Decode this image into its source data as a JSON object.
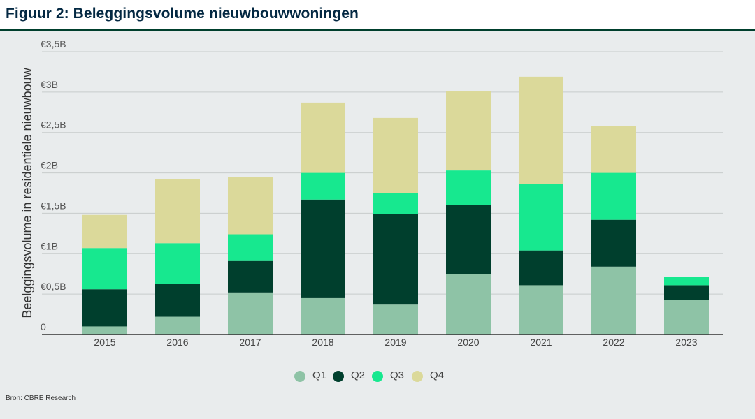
{
  "title": "Figuur 2: Beleggingsvolume nieuwbouwwoningen",
  "source": "Bron: CBRE Research",
  "colors": {
    "Q1": "#8ec3a6",
    "Q2": "#003f2d",
    "Q3": "#17e88f",
    "Q4": "#dbd99a",
    "grid": "#c7cccc",
    "axis": "#333333"
  },
  "chart_data": {
    "type": "bar",
    "stacked": true,
    "ylabel": "Beelggingsvolume in residentiele nieuwbouw",
    "ylim": [
      0,
      3.5
    ],
    "yticks": [
      0,
      0.5,
      1,
      1.5,
      2,
      2.5,
      3,
      3.5
    ],
    "ytick_labels": [
      "0",
      "€0,5B",
      "€1B",
      "€1,5B",
      "€2B",
      "€2,5B",
      "€3B",
      "€3,5B"
    ],
    "categories": [
      "2015",
      "2016",
      "2017",
      "2018",
      "2019",
      "2020",
      "2021",
      "2022",
      "2023"
    ],
    "series": [
      {
        "name": "Q1",
        "values": [
          0.1,
          0.22,
          0.52,
          0.45,
          0.37,
          0.75,
          0.61,
          0.84,
          0.43
        ]
      },
      {
        "name": "Q2",
        "values": [
          0.46,
          0.41,
          0.39,
          1.22,
          1.12,
          0.85,
          0.43,
          0.58,
          0.18
        ]
      },
      {
        "name": "Q3",
        "values": [
          0.51,
          0.5,
          0.33,
          0.33,
          0.26,
          0.43,
          0.82,
          0.58,
          0.1
        ]
      },
      {
        "name": "Q4",
        "values": [
          0.41,
          0.79,
          0.71,
          0.87,
          0.93,
          0.98,
          1.33,
          0.58,
          0.0
        ]
      }
    ],
    "grid": true,
    "legend": "bottom-center"
  }
}
